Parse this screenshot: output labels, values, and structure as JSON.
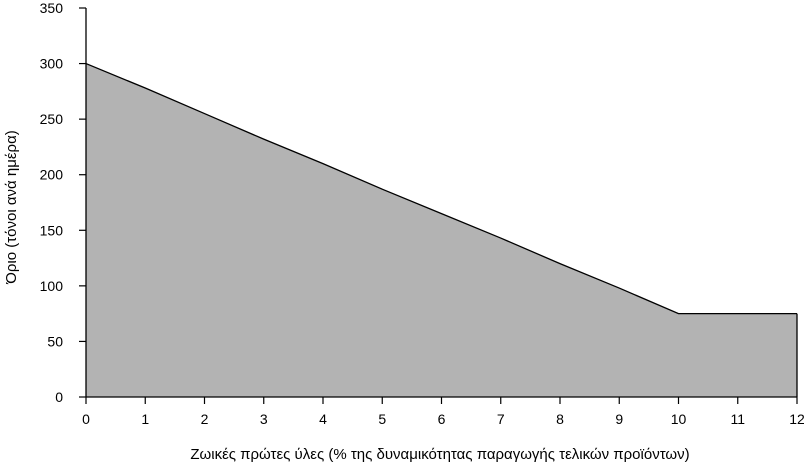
{
  "chart_data": {
    "type": "area",
    "title": "",
    "xlabel": "Ζωικές πρώτες ύλες (% της δυναμικότητας παραγωγής τελικών προϊόντων)",
    "ylabel": "Όριο (τόνοι ανά ημέρα)",
    "x": [
      0,
      1,
      2,
      3,
      4,
      5,
      6,
      7,
      8,
      9,
      10,
      11,
      12
    ],
    "y": [
      300,
      278,
      255,
      232,
      210,
      187,
      165,
      143,
      120,
      98,
      75,
      75,
      75
    ],
    "xlim": [
      0,
      12
    ],
    "ylim": [
      0,
      350
    ],
    "xticks": [
      0,
      1,
      2,
      3,
      4,
      5,
      6,
      7,
      8,
      9,
      10,
      11,
      12
    ],
    "yticks": [
      0,
      50,
      100,
      150,
      200,
      250,
      300,
      350
    ],
    "grid": false,
    "colors": {
      "fill": "#b3b3b3",
      "line": "#000000"
    }
  }
}
